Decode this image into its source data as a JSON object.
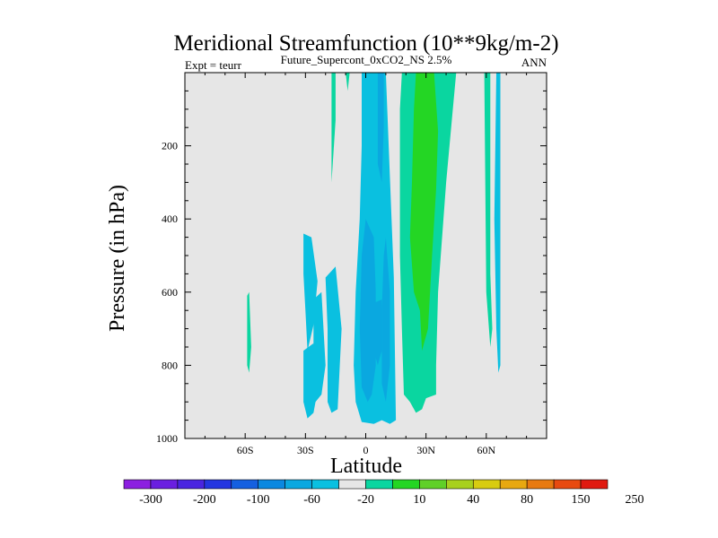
{
  "chart_data": {
    "type": "contour",
    "title": "Meridional Streamfunction (10**9kg/m-2)",
    "subtitle": "Future_Supercont_0xCO2_NS 2.5%",
    "left_note": "Expt = teurr",
    "right_note": "ANN",
    "xlabel": "Latitude",
    "ylabel": "Pressure (in hPa)",
    "xlim": [
      -90,
      90
    ],
    "ylim": [
      1000,
      0
    ],
    "y_inverted": true,
    "x_ticks": [
      {
        "value": -60,
        "label": "60S"
      },
      {
        "value": -30,
        "label": "30S"
      },
      {
        "value": 0,
        "label": "0"
      },
      {
        "value": 30,
        "label": "30N"
      },
      {
        "value": 60,
        "label": "60N"
      }
    ],
    "y_ticks": [
      {
        "value": 200,
        "label": "200"
      },
      {
        "value": 400,
        "label": "400"
      },
      {
        "value": 600,
        "label": "600"
      },
      {
        "value": 800,
        "label": "800"
      },
      {
        "value": 1000,
        "label": "1000"
      }
    ],
    "background_color": "#e6e6e6",
    "colorbar": {
      "labels": [
        "-300",
        "-200",
        "-100",
        "-60",
        "-20",
        "10",
        "40",
        "80",
        "150",
        "250"
      ],
      "colors": [
        "#8c1fe0",
        "#6a1fe0",
        "#4a25e0",
        "#2436e0",
        "#1560e0",
        "#0a88e0",
        "#0aa8e0",
        "#0ac0e0",
        "#e6e6e6",
        "#0ad6a0",
        "#24d624",
        "#60d028",
        "#a8d01e",
        "#d8cc10",
        "#e8a810",
        "#e87a10",
        "#e84a10",
        "#e01a10"
      ]
    },
    "regions": [
      {
        "color": "#0ac0e0",
        "points": [
          [
            -2,
            0
          ],
          [
            10,
            0
          ],
          [
            14,
            560
          ],
          [
            15,
            950
          ],
          [
            12,
            960
          ],
          [
            8,
            950
          ],
          [
            4,
            960
          ],
          [
            -2,
            955
          ],
          [
            -5,
            900
          ],
          [
            -6,
            800
          ],
          [
            -5,
            600
          ],
          [
            -3,
            400
          ],
          [
            -2,
            200
          ]
        ]
      },
      {
        "color": "#0ac0e0",
        "points": [
          [
            -20,
            560
          ],
          [
            -15,
            530
          ],
          [
            -12,
            700
          ],
          [
            -14,
            920
          ],
          [
            -17,
            930
          ],
          [
            -19,
            900
          ],
          [
            -19,
            700
          ]
        ]
      },
      {
        "color": "#0ac0e0",
        "points": [
          [
            -26,
            620
          ],
          [
            -22,
            600
          ],
          [
            -20,
            800
          ],
          [
            -22,
            880
          ],
          [
            -25,
            900
          ],
          [
            -26,
            800
          ]
        ]
      },
      {
        "color": "#0ac0e0",
        "points": [
          [
            -31,
            440
          ],
          [
            -27,
            450
          ],
          [
            -24,
            570
          ],
          [
            -26,
            690
          ],
          [
            -29,
            760
          ],
          [
            -30,
            650
          ],
          [
            -31,
            550
          ]
        ]
      },
      {
        "color": "#0ac0e0",
        "points": [
          [
            -31,
            760
          ],
          [
            -26,
            740
          ],
          [
            -24,
            870
          ],
          [
            -26,
            930
          ],
          [
            -29,
            945
          ],
          [
            -31,
            900
          ]
        ]
      },
      {
        "color": "#0ac0e0",
        "points": [
          [
            65,
            0
          ],
          [
            67,
            0
          ],
          [
            67,
            500
          ],
          [
            67,
            800
          ],
          [
            66,
            820
          ],
          [
            65,
            700
          ],
          [
            64,
            400
          ]
        ]
      },
      {
        "color": "#0aa8e0",
        "points": [
          [
            0,
            400
          ],
          [
            4,
            450
          ],
          [
            5,
            600
          ],
          [
            5,
            800
          ],
          [
            3,
            880
          ],
          [
            1,
            900
          ],
          [
            -2,
            860
          ],
          [
            -3,
            700
          ],
          [
            -2,
            500
          ]
        ]
      },
      {
        "color": "#0aa8e0",
        "points": [
          [
            10,
            450
          ],
          [
            12,
            600
          ],
          [
            12,
            800
          ],
          [
            10,
            900
          ],
          [
            8,
            850
          ],
          [
            8,
            650
          ],
          [
            9,
            500
          ]
        ]
      },
      {
        "color": "#0aa8e0",
        "points": [
          [
            4,
            630
          ],
          [
            8,
            620
          ],
          [
            8,
            760
          ],
          [
            6,
            800
          ],
          [
            4,
            760
          ]
        ]
      },
      {
        "color": "#0aa8e0",
        "points": [
          [
            6,
            0
          ],
          [
            9,
            0
          ],
          [
            9,
            150
          ],
          [
            8,
            300
          ],
          [
            6,
            250
          ],
          [
            6,
            100
          ]
        ]
      },
      {
        "color": "#0ad6a0",
        "points": [
          [
            18,
            0
          ],
          [
            45,
            0
          ],
          [
            43,
            120
          ],
          [
            40,
            300
          ],
          [
            36,
            600
          ],
          [
            35,
            800
          ],
          [
            35,
            880
          ],
          [
            30,
            890
          ],
          [
            28,
            920
          ],
          [
            25,
            930
          ],
          [
            22,
            900
          ],
          [
            19,
            880
          ],
          [
            18,
            700
          ],
          [
            17,
            500
          ],
          [
            17,
            300
          ],
          [
            17,
            100
          ]
        ]
      },
      {
        "color": "#0ad6a0",
        "points": [
          [
            -17,
            0
          ],
          [
            -15,
            0
          ],
          [
            -15,
            130
          ],
          [
            -17,
            300
          ],
          [
            -17,
            300
          ]
        ]
      },
      {
        "color": "#0ad6a0",
        "points": [
          [
            -10,
            0
          ],
          [
            -8,
            0
          ],
          [
            -9,
            50
          ]
        ]
      },
      {
        "color": "#0ad6a0",
        "points": [
          [
            -59,
            610
          ],
          [
            -58,
            600
          ],
          [
            -57,
            750
          ],
          [
            -58,
            820
          ],
          [
            -59,
            800
          ]
        ]
      },
      {
        "color": "#0ad6a0",
        "points": [
          [
            59,
            0
          ],
          [
            62,
            0
          ],
          [
            62,
            550
          ],
          [
            63,
            700
          ],
          [
            62,
            750
          ],
          [
            60,
            600
          ]
        ]
      },
      {
        "color": "#24d624",
        "points": [
          [
            25,
            0
          ],
          [
            34,
            0
          ],
          [
            36,
            160
          ],
          [
            35,
            320
          ],
          [
            33,
            500
          ],
          [
            31,
            700
          ],
          [
            28,
            760
          ],
          [
            27,
            650
          ],
          [
            24,
            600
          ],
          [
            22,
            450
          ],
          [
            23,
            300
          ],
          [
            24,
            100
          ]
        ]
      }
    ]
  }
}
